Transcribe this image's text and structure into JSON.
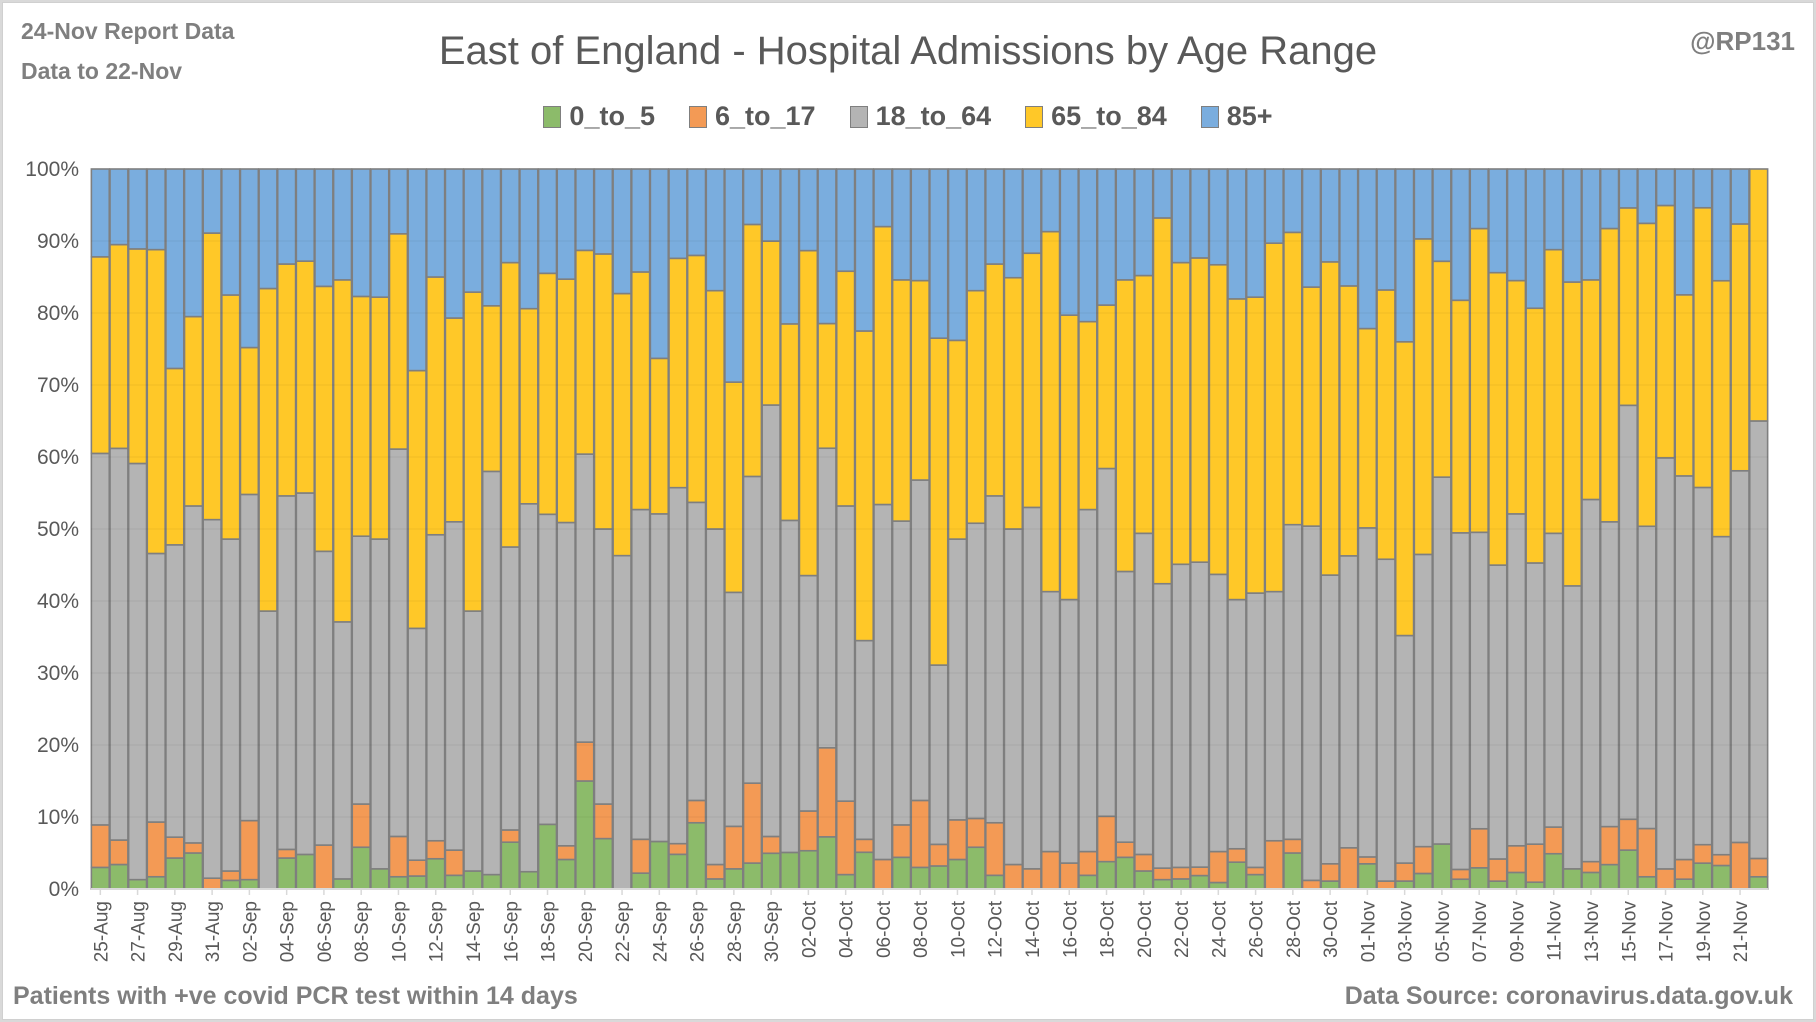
{
  "header": {
    "report_date": "24-Nov Report Data",
    "data_to": "Data to 22-Nov",
    "handle": "@RP131"
  },
  "footer": {
    "note": "Patients with  +ve covid PCR test within 14 days",
    "source": "Data Source: coronavirus.data.gov.uk"
  },
  "chart_data": {
    "type": "bar",
    "stacked": "percent",
    "title": "East of England - Hospital Admissions by Age Range",
    "xlabel": "",
    "ylabel": "",
    "ylim": [
      0,
      100
    ],
    "yticks": [
      "0%",
      "10%",
      "20%",
      "30%",
      "40%",
      "50%",
      "60%",
      "70%",
      "80%",
      "90%",
      "100%"
    ],
    "grid": true,
    "legend_position": "top-center",
    "categories": [
      "25-Aug",
      "26-Aug",
      "27-Aug",
      "28-Aug",
      "29-Aug",
      "30-Aug",
      "31-Aug",
      "01-Sep",
      "02-Sep",
      "03-Sep",
      "04-Sep",
      "05-Sep",
      "06-Sep",
      "07-Sep",
      "08-Sep",
      "09-Sep",
      "10-Sep",
      "11-Sep",
      "12-Sep",
      "13-Sep",
      "14-Sep",
      "15-Sep",
      "16-Sep",
      "17-Sep",
      "18-Sep",
      "19-Sep",
      "20-Sep",
      "21-Sep",
      "22-Sep",
      "23-Sep",
      "24-Sep",
      "25-Sep",
      "26-Sep",
      "27-Sep",
      "28-Sep",
      "29-Sep",
      "30-Sep",
      "01-Oct",
      "02-Oct",
      "03-Oct",
      "04-Oct",
      "05-Oct",
      "06-Oct",
      "07-Oct",
      "08-Oct",
      "09-Oct",
      "10-Oct",
      "11-Oct",
      "12-Oct",
      "13-Oct",
      "14-Oct",
      "15-Oct",
      "16-Oct",
      "17-Oct",
      "18-Oct",
      "19-Oct",
      "20-Oct",
      "21-Oct",
      "22-Oct",
      "23-Oct",
      "24-Oct",
      "25-Oct",
      "26-Oct",
      "27-Oct",
      "28-Oct",
      "29-Oct",
      "30-Oct",
      "31-Oct",
      "01-Nov",
      "02-Nov",
      "03-Nov",
      "04-Nov",
      "05-Nov",
      "06-Nov",
      "07-Nov",
      "08-Nov",
      "09-Nov",
      "10-Nov",
      "11-Nov",
      "12-Nov",
      "13-Nov",
      "14-Nov",
      "15-Nov",
      "16-Nov",
      "17-Nov",
      "18-Nov",
      "19-Nov",
      "20-Nov",
      "21-Nov",
      "22-Nov"
    ],
    "tick_labels": [
      "25-Aug",
      "27-Aug",
      "29-Aug",
      "31-Aug",
      "02-Sep",
      "04-Sep",
      "06-Sep",
      "08-Sep",
      "10-Sep",
      "12-Sep",
      "14-Sep",
      "16-Sep",
      "18-Sep",
      "20-Sep",
      "22-Sep",
      "24-Sep",
      "26-Sep",
      "28-Sep",
      "30-Sep",
      "02-Oct",
      "04-Oct",
      "06-Oct",
      "08-Oct",
      "10-Oct",
      "12-Oct",
      "14-Oct",
      "16-Oct",
      "18-Oct",
      "20-Oct",
      "22-Oct",
      "24-Oct",
      "26-Oct",
      "28-Oct",
      "30-Oct",
      "01-Nov",
      "03-Nov",
      "05-Nov",
      "07-Nov",
      "09-Nov",
      "11-Nov",
      "13-Nov",
      "15-Nov",
      "17-Nov",
      "19-Nov",
      "21-Nov"
    ],
    "series": [
      {
        "name": "0_to_5",
        "color": "#8cbb6a",
        "values": [
          3.0,
          3.4,
          1.3,
          1.7,
          4.3,
          5.0,
          0,
          1.2,
          1.3,
          0,
          4.3,
          4.8,
          0,
          1.4,
          5.8,
          2.8,
          1.7,
          1.8,
          4.2,
          1.9,
          2.5,
          2.0,
          6.5,
          2.4,
          8.8,
          4.1,
          15.0,
          7.0,
          0,
          2.2,
          6.6,
          5.2,
          9.2,
          1.4,
          2.8,
          3.6,
          5.1,
          5.1,
          5.3,
          8.2,
          2.0,
          5.1,
          0,
          4.4,
          3.0,
          3.2,
          4.1,
          5.8,
          1.9,
          0,
          0,
          0,
          0,
          1.9,
          3.8,
          4.4,
          2.5,
          1.3,
          1.4,
          1.9,
          0.9,
          3.8,
          2.0,
          0,
          5.0,
          0,
          1.1,
          0,
          3.3,
          0,
          1.1,
          2.2,
          5.9,
          1.4,
          3.2,
          1.1,
          2.3,
          1.0,
          4.9,
          2.8,
          2.3,
          3.4,
          5.3,
          1.8,
          0,
          1.6,
          2.8,
          3.7,
          0,
          1.6
        ]
      },
      {
        "name": "6_to_17",
        "color": "#f39a55",
        "values": [
          5.9,
          3.4,
          0,
          7.6,
          2.9,
          1.4,
          1.5,
          1.3,
          8.2,
          0,
          1.2,
          0,
          6.1,
          0,
          6.0,
          0,
          5.6,
          2.2,
          2.5,
          3.5,
          0,
          0,
          1.7,
          0,
          0,
          1.9,
          5.4,
          4.8,
          0,
          4.7,
          0,
          1.6,
          3.1,
          2.0,
          5.9,
          11.1,
          2.4,
          0,
          5.5,
          14.0,
          10.2,
          1.8,
          4.1,
          4.5,
          9.3,
          3.0,
          5.5,
          4.0,
          7.3,
          3.4,
          2.8,
          5.2,
          3.6,
          3.3,
          6.3,
          2.1,
          2.3,
          1.6,
          1.6,
          1.2,
          4.3,
          1.9,
          1.0,
          6.7,
          1.9,
          1.2,
          2.4,
          5.6,
          0.9,
          1.1,
          2.5,
          3.8,
          0,
          1.4,
          5.9,
          3.1,
          3.7,
          5.6,
          3.7,
          0,
          1.5,
          5.3,
          4.2,
          7.1,
          2.7,
          3.2,
          2.0,
          1.7,
          5.0,
          2.4
        ]
      },
      {
        "name": "18_to_64",
        "color": "#b4b4b4",
        "values": [
          51.6,
          54.4,
          57.8,
          37.3,
          40.6,
          46.8,
          49.8,
          46.1,
          45.3,
          38.6,
          49.1,
          50.2,
          40.8,
          35.7,
          37.2,
          45.8,
          53.8,
          32.2,
          42.5,
          45.6,
          36.1,
          56.0,
          39.3,
          51.1,
          42.2,
          44.9,
          40.0,
          38.2,
          46.3,
          45.8,
          45.5,
          53.4,
          41.4,
          46.6,
          32.5,
          42.6,
          61.6,
          46.3,
          32.6,
          47.1,
          41.0,
          27.6,
          49.3,
          42.2,
          44.5,
          24.9,
          39.0,
          41.0,
          45.4,
          46.6,
          50.2,
          36.1,
          36.6,
          47.5,
          48.3,
          37.6,
          44.6,
          39.5,
          42.1,
          43.2,
          38.5,
          35.3,
          38.1,
          34.6,
          43.7,
          49.2,
          40.1,
          39.7,
          43.1,
          44.7,
          31.6,
          41.4,
          48.1,
          48.2,
          44.8,
          41.1,
          46.1,
          41.4,
          40.8,
          39.3,
          50.3,
          42.5,
          56.4,
          44.5,
          55.2,
          62.5,
          38.7,
          50.1,
          39.9,
          57.3
        ]
      },
      {
        "name": "65_to_84",
        "color": "#ffc828",
        "values": [
          27.3,
          28.3,
          29.8,
          42.2,
          24.5,
          26.3,
          39.8,
          33.9,
          20.4,
          44.8,
          32.2,
          32.2,
          36.8,
          47.5,
          33.3,
          33.6,
          29.9,
          35.8,
          35.8,
          28.3,
          44.3,
          23.0,
          39.5,
          27.1,
          32.8,
          33.8,
          28.3,
          38.2,
          36.4,
          33.0,
          21.6,
          34.4,
          34.3,
          33.1,
          29.2,
          35.0,
          23.4,
          27.4,
          45.0,
          19.6,
          32.6,
          43.0,
          38.6,
          33.5,
          27.7,
          45.4,
          27.6,
          32.3,
          32.2,
          34.9,
          35.3,
          50.0,
          39.5,
          26.1,
          22.7,
          40.5,
          35.8,
          50.8,
          41.9,
          43.1,
          43.0,
          42.6,
          41.1,
          48.4,
          40.6,
          33.2,
          43.5,
          36.7,
          26.1,
          37.4,
          40.8,
          44.7,
          28.3,
          33.3,
          45.9,
          40.9,
          32.4,
          37.5,
          39.4,
          42.2,
          30.5,
          40.9,
          26.9,
          44.6,
          33.9,
          29.5,
          30.3,
          40.3,
          26.5,
          33.0
        ]
      },
      {
        "name": "85+",
        "color": "#7aadde",
        "values": [
          12.2,
          10.5,
          11.1,
          11.2,
          27.7,
          20.5,
          8.9,
          17.5,
          24.8,
          16.6,
          13.2,
          12.8,
          16.3,
          15.4,
          17.7,
          17.8,
          9.0,
          28.0,
          15.0,
          20.7,
          17.1,
          19.0,
          13.0,
          19.4,
          14.2,
          15.3,
          11.3,
          11.8,
          17.3,
          14.3,
          26.3,
          13.4,
          12.0,
          16.9,
          29.6,
          7.7,
          10.3,
          21.6,
          11.3,
          24.3,
          14.2,
          22.5,
          8.0,
          15.4,
          15.5,
          23.5,
          23.8,
          16.9,
          13.2,
          15.1,
          11.7,
          8.7,
          20.3,
          21.2,
          18.9,
          15.4,
          14.8,
          6.8,
          13.0,
          12.6,
          13.3,
          18.4,
          17.8,
          10.3,
          8.8,
          16.4,
          12.9,
          15.9,
          20.9,
          16.8,
          24.0,
          9.9,
          12.1,
          18.8,
          9.0,
          14.5,
          15.5,
          20.5,
          11.2,
          15.7,
          15.4,
          8.3,
          5.3,
          8.0,
          4.9,
          20.5,
          4.2,
          17.6,
          5.9
        ]
      }
    ]
  }
}
